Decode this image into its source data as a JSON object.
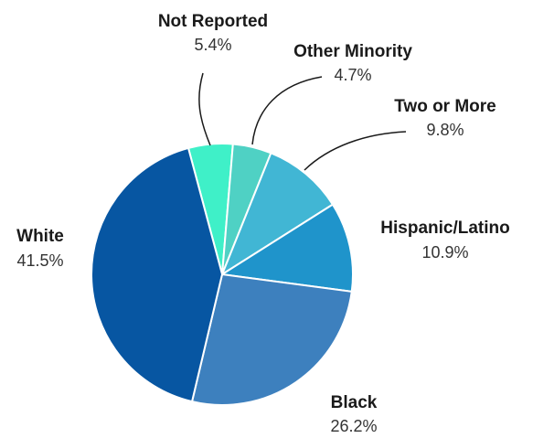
{
  "chart_data": {
    "type": "pie",
    "title": "",
    "slices": [
      {
        "label": "Not Reported",
        "value": 5.4,
        "display": "5.4%",
        "color": "#3ff0c8"
      },
      {
        "label": "Other Minority",
        "value": 4.7,
        "display": "4.7%",
        "color": "#4fd1c4"
      },
      {
        "label": "Two or More",
        "value": 9.8,
        "display": "9.8%",
        "color": "#41b6d4"
      },
      {
        "label": "Hispanic/Latino",
        "value": 10.9,
        "display": "10.9%",
        "color": "#1f94cb"
      },
      {
        "label": "Black",
        "value": 26.2,
        "display": "26.2%",
        "color": "#3d80be"
      },
      {
        "label": "White",
        "value": 41.5,
        "display": "41.5%",
        "color": "#0756a2"
      }
    ]
  }
}
